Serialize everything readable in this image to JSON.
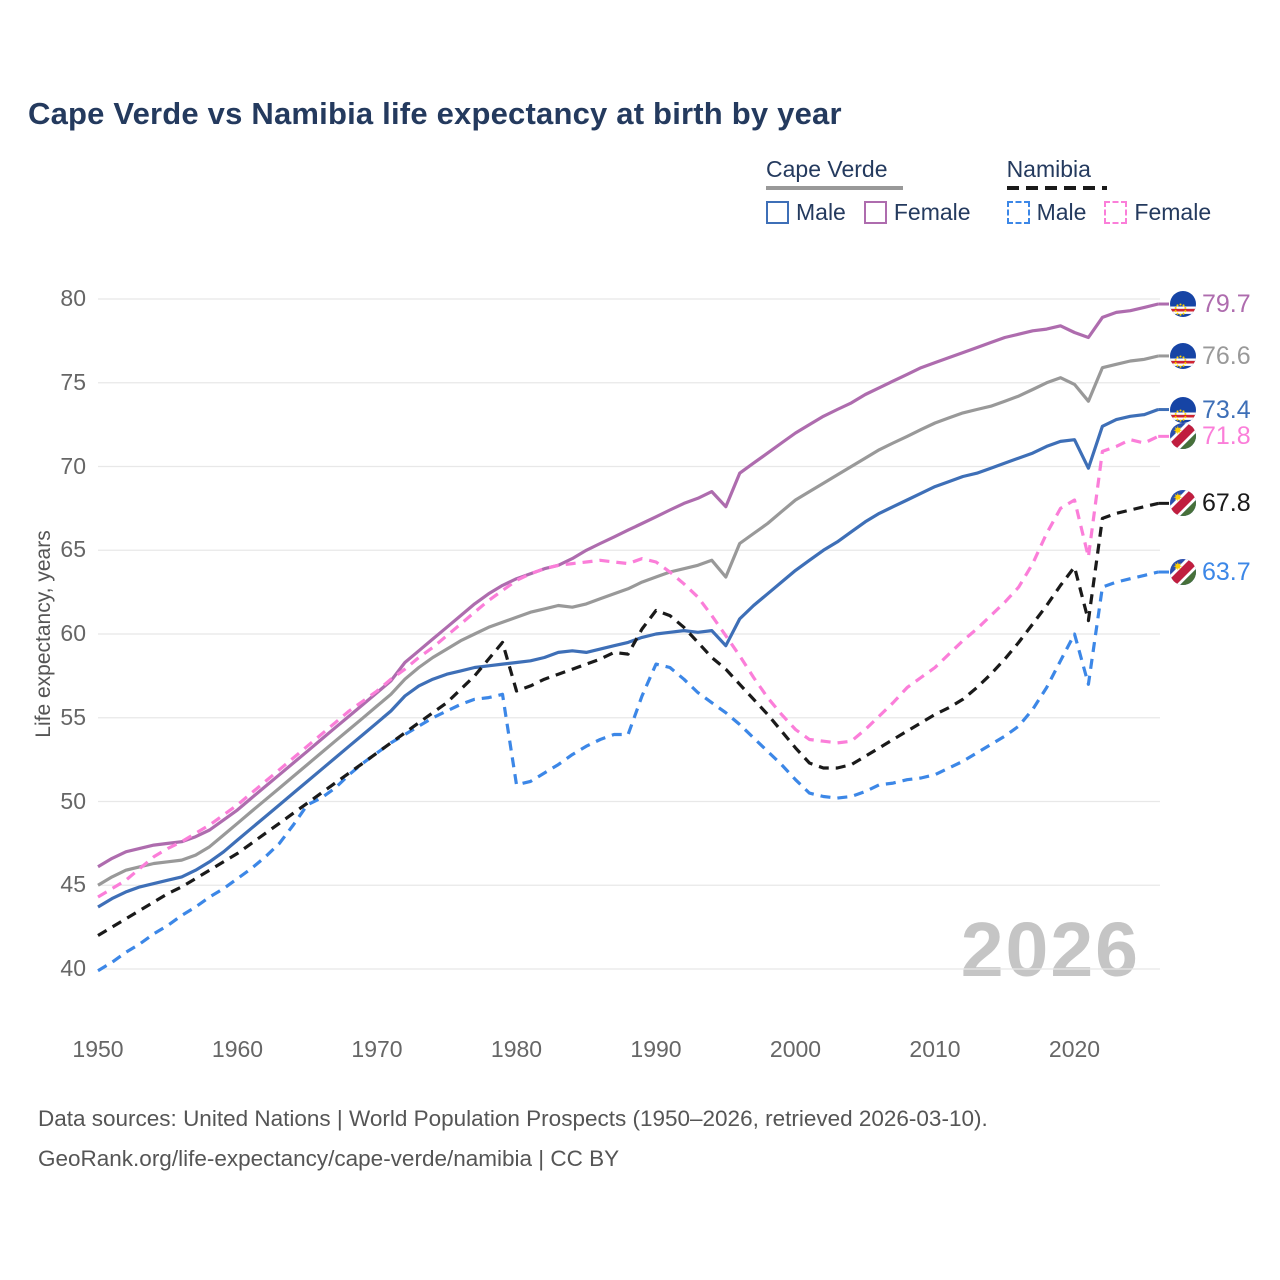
{
  "title": "Cape Verde vs Namibia life expectancy at birth by year",
  "watermark": "2026",
  "footer": {
    "line1": "Data sources: United Nations | World Population Prospects (1950–2026, retrieved 2026-03-10).",
    "line2": "GeoRank.org/life-expectancy/cape-verde/namibia | CC BY"
  },
  "colors": {
    "title": "#243a5e",
    "grid": "#e8e8e8",
    "axis_text": "#666666",
    "watermark": "#c5c5c5",
    "cape_verde_female": "#ae6cae",
    "cape_verde_all": "#999999",
    "cape_verde_male": "#3e6fb7",
    "namibia_female": "#fb7ed9",
    "namibia_all": "#1a1a1a",
    "namibia_male": "#3c87e7"
  },
  "legend": {
    "groups": [
      {
        "label": "Cape Verde",
        "rule_color": "#999999",
        "dashed": false,
        "items": [
          {
            "label": "Male",
            "color": "#3e6fb7",
            "dashed": false
          },
          {
            "label": "Female",
            "color": "#ae6cae",
            "dashed": false
          }
        ]
      },
      {
        "label": "Namibia",
        "rule_color": "#1a1a1a",
        "dashed": true,
        "items": [
          {
            "label": "Male",
            "color": "#3c87e7",
            "dashed": true
          },
          {
            "label": "Female",
            "color": "#fb7ed9",
            "dashed": true
          }
        ]
      }
    ]
  },
  "chart_data": {
    "type": "line",
    "title": "Cape Verde vs Namibia life expectancy at birth by year",
    "xlabel": "",
    "ylabel": "Life expectancy, years",
    "x_start": 1950,
    "x_end": 2026,
    "ylim": [
      38.5,
      81.5
    ],
    "y_ticks": [
      40,
      45,
      50,
      55,
      60,
      65,
      70,
      75,
      80
    ],
    "x_ticks": [
      1950,
      1960,
      1970,
      1980,
      1990,
      2000,
      2010,
      2020
    ],
    "grid": "horizontal",
    "legend_position": "top-right",
    "series": [
      {
        "name": "Cape Verde Female",
        "country": "cape-verde",
        "color": "#ae6cae",
        "dashed": false,
        "end_label": "79.7",
        "values": [
          46.1,
          46.6,
          47.0,
          47.2,
          47.4,
          47.5,
          47.6,
          47.9,
          48.3,
          48.9,
          49.5,
          50.2,
          50.9,
          51.6,
          52.3,
          53.0,
          53.7,
          54.4,
          55.1,
          55.8,
          56.5,
          57.2,
          58.3,
          59.0,
          59.7,
          60.4,
          61.1,
          61.8,
          62.4,
          62.9,
          63.3,
          63.6,
          63.9,
          64.1,
          64.5,
          65.0,
          65.4,
          65.8,
          66.2,
          66.6,
          67.0,
          67.4,
          67.8,
          68.1,
          68.5,
          67.6,
          69.6,
          70.2,
          70.8,
          71.4,
          72.0,
          72.5,
          73.0,
          73.4,
          73.8,
          74.3,
          74.7,
          75.1,
          75.5,
          75.9,
          76.2,
          76.5,
          76.8,
          77.1,
          77.4,
          77.7,
          77.9,
          78.1,
          78.2,
          78.4,
          78.0,
          77.7,
          78.9,
          79.2,
          79.3,
          79.5,
          79.7
        ]
      },
      {
        "name": "Cape Verde Both sexes",
        "country": "cape-verde",
        "color": "#999999",
        "dashed": false,
        "end_label": "76.6",
        "values": [
          45.0,
          45.5,
          45.9,
          46.1,
          46.3,
          46.4,
          46.5,
          46.8,
          47.3,
          48.0,
          48.7,
          49.4,
          50.1,
          50.8,
          51.5,
          52.2,
          52.9,
          53.6,
          54.3,
          55.0,
          55.7,
          56.4,
          57.3,
          58.0,
          58.6,
          59.1,
          59.6,
          60.0,
          60.4,
          60.7,
          61.0,
          61.3,
          61.5,
          61.7,
          61.6,
          61.8,
          62.1,
          62.4,
          62.7,
          63.1,
          63.4,
          63.7,
          63.9,
          64.1,
          64.4,
          63.4,
          65.4,
          66.0,
          66.6,
          67.3,
          68.0,
          68.5,
          69.0,
          69.5,
          70.0,
          70.5,
          71.0,
          71.4,
          71.8,
          72.2,
          72.6,
          72.9,
          73.2,
          73.4,
          73.6,
          73.9,
          74.2,
          74.6,
          75.0,
          75.3,
          74.9,
          73.9,
          75.9,
          76.1,
          76.3,
          76.4,
          76.6
        ]
      },
      {
        "name": "Cape Verde Male",
        "country": "cape-verde",
        "color": "#3e6fb7",
        "dashed": false,
        "end_label": "73.4",
        "values": [
          43.7,
          44.2,
          44.6,
          44.9,
          45.1,
          45.3,
          45.5,
          45.9,
          46.4,
          47.0,
          47.7,
          48.4,
          49.1,
          49.8,
          50.5,
          51.2,
          51.9,
          52.6,
          53.3,
          54.0,
          54.7,
          55.4,
          56.3,
          56.9,
          57.3,
          57.6,
          57.8,
          58.0,
          58.1,
          58.2,
          58.3,
          58.4,
          58.6,
          58.9,
          59.0,
          58.9,
          59.1,
          59.3,
          59.5,
          59.8,
          60.0,
          60.1,
          60.2,
          60.1,
          60.2,
          59.3,
          60.9,
          61.7,
          62.4,
          63.1,
          63.8,
          64.4,
          65.0,
          65.5,
          66.1,
          66.7,
          67.2,
          67.6,
          68.0,
          68.4,
          68.8,
          69.1,
          69.4,
          69.6,
          69.9,
          70.2,
          70.5,
          70.8,
          71.2,
          71.5,
          71.6,
          69.9,
          72.4,
          72.8,
          73.0,
          73.1,
          73.4
        ]
      },
      {
        "name": "Namibia Female",
        "country": "namibia",
        "color": "#fb7ed9",
        "dashed": true,
        "end_label": "71.8",
        "values": [
          44.3,
          44.8,
          45.3,
          46.0,
          46.7,
          47.2,
          47.6,
          48.1,
          48.6,
          49.2,
          49.8,
          50.5,
          51.2,
          51.9,
          52.6,
          53.3,
          54.0,
          54.7,
          55.4,
          56.0,
          56.6,
          57.3,
          57.9,
          58.6,
          59.2,
          59.9,
          60.6,
          61.3,
          62.0,
          62.6,
          63.2,
          63.6,
          63.9,
          64.1,
          64.2,
          64.3,
          64.4,
          64.3,
          64.2,
          64.5,
          64.3,
          63.7,
          63.0,
          62.2,
          61.1,
          59.9,
          58.7,
          57.4,
          56.2,
          55.2,
          54.3,
          53.7,
          53.6,
          53.5,
          53.6,
          54.3,
          55.1,
          55.9,
          56.8,
          57.4,
          58.0,
          58.8,
          59.6,
          60.3,
          61.1,
          61.9,
          62.8,
          64.2,
          66.0,
          67.5,
          68.0,
          64.6,
          70.9,
          71.2,
          71.6,
          71.4,
          71.8
        ]
      },
      {
        "name": "Namibia Both sexes",
        "country": "namibia",
        "color": "#1a1a1a",
        "dashed": true,
        "end_label": "67.8",
        "values": [
          42.0,
          42.5,
          43.0,
          43.5,
          44.0,
          44.5,
          44.9,
          45.4,
          45.9,
          46.4,
          46.9,
          47.5,
          48.1,
          48.7,
          49.3,
          49.9,
          50.5,
          51.1,
          51.7,
          52.3,
          52.9,
          53.5,
          54.1,
          54.7,
          55.3,
          55.9,
          56.7,
          57.5,
          58.5,
          59.5,
          56.6,
          56.9,
          57.3,
          57.6,
          57.9,
          58.2,
          58.5,
          58.9,
          58.8,
          60.3,
          61.4,
          61.1,
          60.4,
          59.5,
          58.6,
          57.9,
          57.0,
          56.1,
          55.2,
          54.2,
          53.2,
          52.3,
          52.0,
          52.0,
          52.2,
          52.7,
          53.2,
          53.7,
          54.2,
          54.7,
          55.2,
          55.6,
          56.1,
          56.8,
          57.6,
          58.5,
          59.5,
          60.6,
          61.7,
          62.9,
          64.0,
          60.8,
          66.9,
          67.2,
          67.4,
          67.6,
          67.8
        ]
      },
      {
        "name": "Namibia Male",
        "country": "namibia",
        "color": "#3c87e7",
        "dashed": true,
        "end_label": "63.7",
        "values": [
          39.9,
          40.4,
          41.0,
          41.5,
          42.1,
          42.6,
          43.2,
          43.7,
          44.3,
          44.8,
          45.4,
          46.0,
          46.7,
          47.5,
          48.6,
          49.8,
          50.2,
          50.8,
          51.6,
          52.3,
          52.9,
          53.5,
          54.0,
          54.5,
          55.0,
          55.4,
          55.8,
          56.1,
          56.2,
          56.4,
          51.0,
          51.2,
          51.7,
          52.2,
          52.8,
          53.3,
          53.7,
          54.0,
          54.0,
          56.3,
          58.2,
          58.0,
          57.3,
          56.5,
          55.9,
          55.3,
          54.6,
          53.8,
          53.0,
          52.2,
          51.3,
          50.5,
          50.3,
          50.2,
          50.3,
          50.6,
          51.0,
          51.1,
          51.3,
          51.4,
          51.6,
          52.0,
          52.4,
          52.9,
          53.4,
          53.9,
          54.5,
          55.5,
          56.8,
          58.4,
          60.0,
          57.0,
          62.8,
          63.1,
          63.3,
          63.5,
          63.7
        ]
      }
    ]
  }
}
